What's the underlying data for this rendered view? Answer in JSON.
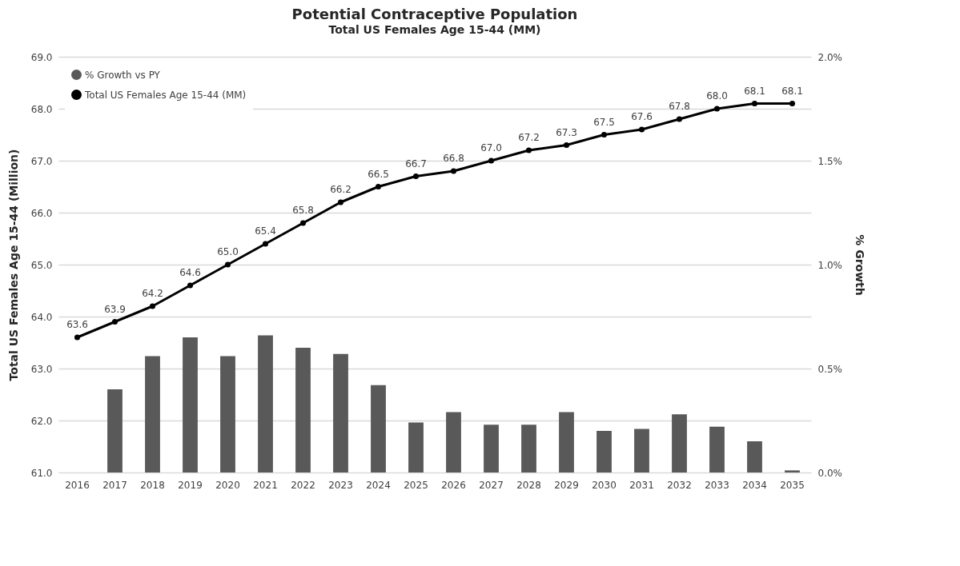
{
  "chart_data": {
    "type": "bar",
    "title": "Potential Contraceptive Population",
    "subtitle": "Total US Females Age 15-44 (MM)",
    "ylabel": "Total US Females Age 15-44 (Million)",
    "y2label": "% Growth",
    "categories": [
      "2016",
      "2017",
      "2018",
      "2019",
      "2020",
      "2021",
      "2022",
      "2023",
      "2024",
      "2025",
      "2026",
      "2027",
      "2028",
      "2029",
      "2030",
      "2031",
      "2032",
      "2033",
      "2034",
      "2035"
    ],
    "series": [
      {
        "name": "% Growth vs PY",
        "axis": "y2",
        "color": "#595959",
        "values": [
          null,
          0.4,
          0.56,
          0.65,
          0.56,
          0.66,
          0.6,
          0.57,
          0.42,
          0.24,
          0.29,
          0.23,
          0.23,
          0.29,
          0.2,
          0.21,
          0.28,
          0.22,
          0.15,
          0.01
        ]
      },
      {
        "name": "Total US Females Age 15-44 (MM)",
        "type": "line",
        "color": "#000000",
        "values": [
          63.6,
          63.9,
          64.2,
          64.6,
          65.0,
          65.4,
          65.8,
          66.2,
          66.5,
          66.7,
          66.8,
          67.0,
          67.2,
          67.3,
          67.5,
          67.6,
          67.8,
          68.0,
          68.1,
          68.1
        ],
        "value_labels": [
          "63.6",
          "63.9",
          "64.2",
          "64.6",
          "65.0",
          "65.4",
          "65.8",
          "66.2",
          "66.5",
          "66.7",
          "66.8",
          "67.0",
          "67.2",
          "67.3",
          "67.5",
          "67.6",
          "67.8",
          "68.0",
          "68.1",
          "68.1"
        ]
      }
    ],
    "ylim": [
      61,
      69
    ],
    "yticks": [
      {
        "value": 61,
        "label": "61.0"
      },
      {
        "value": 62,
        "label": "62.0"
      },
      {
        "value": 63,
        "label": "63.0"
      },
      {
        "value": 64,
        "label": "64.0"
      },
      {
        "value": 65,
        "label": "65.0"
      },
      {
        "value": 66,
        "label": "66.0"
      },
      {
        "value": 67,
        "label": "67.0"
      },
      {
        "value": 68,
        "label": "68.0"
      },
      {
        "value": 69,
        "label": "69.0"
      }
    ],
    "y2lim": [
      0,
      2
    ],
    "y2ticks": [
      {
        "value": 0,
        "label": "0.0%"
      },
      {
        "value": 0.5,
        "label": "0.5%"
      },
      {
        "value": 1,
        "label": "1.0%"
      },
      {
        "value": 1.5,
        "label": "1.5%"
      },
      {
        "value": 2,
        "label": "2.0%"
      }
    ],
    "grid": "y",
    "legend": "top left",
    "marker": "circle",
    "line_style": "solid"
  }
}
